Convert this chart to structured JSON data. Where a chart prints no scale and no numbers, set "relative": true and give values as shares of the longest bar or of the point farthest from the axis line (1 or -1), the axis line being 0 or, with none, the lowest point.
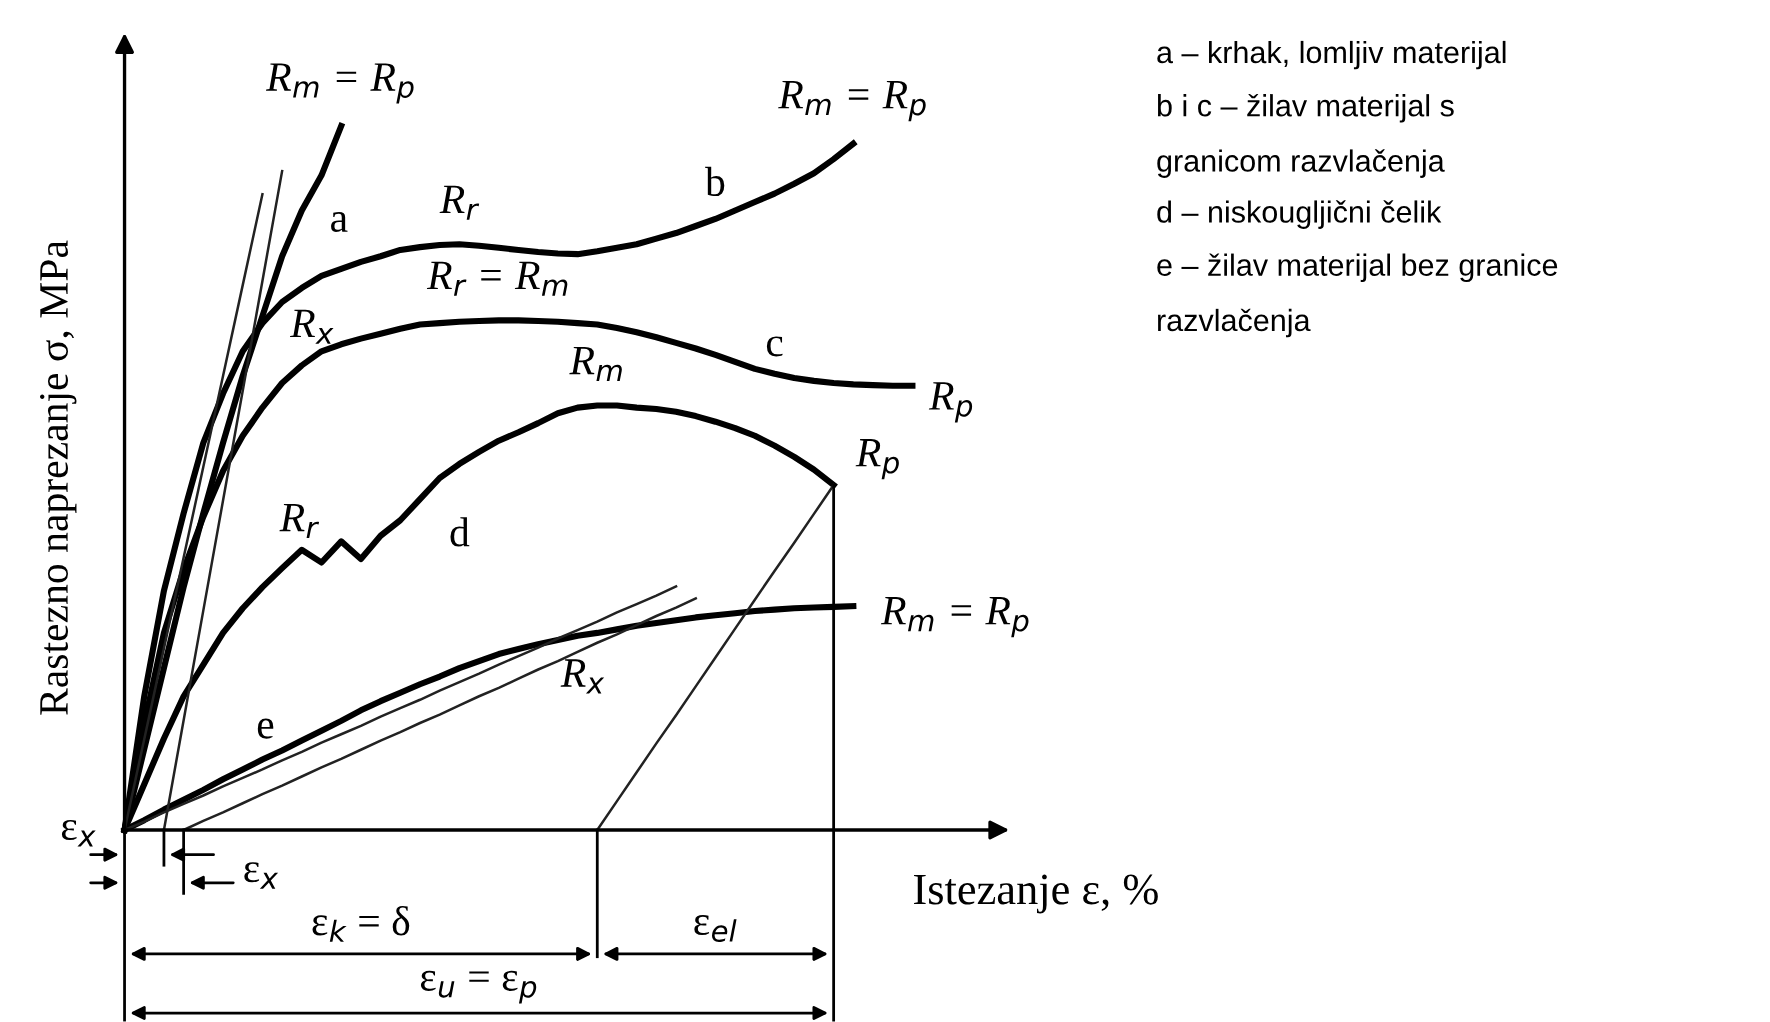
{
  "chart_data": {
    "type": "line",
    "relative": true,
    "xlabel": "Istezanje ε, %",
    "ylabel": "Rastezno naprezanje σ, MPa",
    "legend": false,
    "marker": "none",
    "line_style": "solid",
    "categories": [
      null,
      null,
      null,
      null,
      null,
      null,
      null,
      null,
      null,
      null,
      null,
      null,
      null,
      null,
      null,
      null,
      null,
      null,
      null,
      null,
      null,
      null,
      null,
      null,
      null,
      null,
      null,
      null,
      null,
      null,
      null,
      null,
      null,
      null,
      null,
      null,
      null,
      null,
      null,
      null,
      null
    ],
    "series": [
      {
        "name": "a",
        "color": "#000000",
        "values": [
          0,
          0.115,
          0.23,
          0.345,
          0.45,
          0.55,
          0.645,
          0.73,
          0.815,
          0.88,
          0.93,
          1.0,
          null,
          null,
          null,
          null,
          null,
          null,
          null,
          null,
          null,
          null,
          null,
          null,
          null,
          null,
          null,
          null,
          null,
          null,
          null,
          null,
          null,
          null,
          null,
          null,
          null,
          null,
          null,
          null,
          null
        ]
      },
      {
        "name": "b",
        "color": "#000000",
        "values": [
          0,
          0.19,
          0.34,
          0.45,
          0.55,
          0.62,
          0.68,
          0.72,
          0.75,
          0.77,
          0.787,
          0.797,
          0.807,
          0.815,
          0.824,
          0.828,
          0.831,
          0.832,
          0.83,
          0.827,
          0.824,
          0.821,
          0.819,
          0.818,
          0.822,
          0.827,
          0.832,
          0.84,
          0.848,
          0.858,
          0.868,
          0.88,
          0.892,
          0.904,
          0.918,
          0.933,
          0.953,
          0.975,
          null,
          null,
          null
        ]
      },
      {
        "name": "c",
        "color": "#000000",
        "values": [
          0,
          0.15,
          0.28,
          0.37,
          0.445,
          0.51,
          0.56,
          0.6,
          0.635,
          0.66,
          0.68,
          0.69,
          0.698,
          0.705,
          0.712,
          0.718,
          0.72,
          0.722,
          0.723,
          0.724,
          0.724,
          0.723,
          0.722,
          0.72,
          0.718,
          0.713,
          0.707,
          0.7,
          0.692,
          0.684,
          0.675,
          0.665,
          0.655,
          0.648,
          0.642,
          0.638,
          0.635,
          0.633,
          0.632,
          0.631,
          0.631
        ]
      },
      {
        "name": "d",
        "color": "#000000",
        "values": [
          0,
          0.065,
          0.13,
          0.19,
          0.235,
          0.28,
          0.315,
          0.345,
          0.372,
          0.398,
          0.38,
          0.41,
          0.385,
          0.418,
          0.44,
          0.47,
          0.5,
          0.52,
          0.537,
          0.553,
          0.565,
          0.578,
          0.592,
          0.6,
          0.603,
          0.603,
          0.6,
          0.598,
          0.594,
          0.588,
          0.58,
          0.571,
          0.56,
          0.546,
          0.53,
          0.512,
          0.49,
          null,
          null,
          null,
          null
        ]
      },
      {
        "name": "e",
        "color": "#000000",
        "values": [
          0,
          0.014,
          0.029,
          0.043,
          0.057,
          0.072,
          0.086,
          0.1,
          0.113,
          0.127,
          0.141,
          0.155,
          0.17,
          0.183,
          0.195,
          0.207,
          0.218,
          0.23,
          0.24,
          0.25,
          0.257,
          0.264,
          0.27,
          0.276,
          0.28,
          0.285,
          0.29,
          0.294,
          0.298,
          0.302,
          0.305,
          0.308,
          0.311,
          0.313,
          0.315,
          0.316,
          0.317,
          0.318,
          null,
          null,
          null
        ]
      },
      {
        "color": "#222222",
        "values": [
          0,
          0.129,
          0.258,
          0.387,
          0.516,
          0.645,
          0.774,
          0.903,
          null,
          null,
          null,
          null,
          null,
          null,
          null,
          null,
          null,
          null,
          null,
          null,
          null,
          null,
          null,
          null,
          null,
          null,
          null,
          null,
          null,
          null,
          null,
          null,
          null,
          null,
          null,
          null,
          null,
          null,
          null,
          null,
          null
        ]
      },
      {
        "color": "#222222",
        "values": [
          null,
          null,
          0,
          0.156,
          0.312,
          0.468,
          0.624,
          0.78,
          0.936,
          null,
          null,
          null,
          null,
          null,
          null,
          null,
          null,
          null,
          null,
          null,
          null,
          null,
          null,
          null,
          null,
          null,
          null,
          null,
          null,
          null,
          null,
          null,
          null,
          null,
          null,
          null,
          null,
          null,
          null,
          null,
          null
        ]
      },
      {
        "color": "#222222",
        "values": [
          0,
          0.012,
          0.025,
          0.037,
          0.049,
          0.062,
          0.074,
          0.086,
          0.099,
          0.111,
          0.124,
          0.136,
          0.148,
          0.161,
          0.173,
          0.185,
          0.198,
          0.21,
          0.222,
          0.235,
          0.247,
          0.259,
          0.272,
          0.284,
          0.296,
          0.309,
          0.321,
          0.333,
          0.346,
          null,
          null,
          null,
          null,
          null,
          null,
          null,
          null,
          null,
          null,
          null,
          null
        ]
      },
      {
        "color": "#222222",
        "values": [
          null,
          null,
          null,
          0,
          0.013,
          0.025,
          0.038,
          0.051,
          0.063,
          0.076,
          0.089,
          0.101,
          0.114,
          0.127,
          0.139,
          0.152,
          0.164,
          0.177,
          0.19,
          0.202,
          0.215,
          0.228,
          0.24,
          0.253,
          0.266,
          0.278,
          0.291,
          0.304,
          0.316,
          0.329,
          null,
          null,
          null,
          null,
          null,
          null,
          null,
          null,
          null,
          null,
          null
        ]
      },
      {
        "color": "#222222",
        "values": [
          null,
          null,
          null,
          null,
          null,
          null,
          null,
          null,
          null,
          null,
          null,
          null,
          null,
          null,
          null,
          null,
          null,
          null,
          null,
          null,
          null,
          null,
          null,
          null,
          0,
          0.041,
          0.082,
          0.123,
          0.163,
          0.204,
          0.245,
          0.286,
          0.327,
          0.368,
          0.408,
          0.449,
          0.49,
          null,
          null,
          null,
          null
        ]
      }
    ],
    "annotations": [
      "ε$_{x}$",
      "ε$_{x}$",
      "ε$_{k}$ = δ",
      "ε$_{el}$",
      "ε$_{u}$ = ε$_{p}$",
      "a – krhak, lomljiv materijal",
      "b i c – žilav materijal s\ngranicom razvlačenja",
      "d – niskougljični čelik",
      "e – žilav materijal bez granice\nrazvlačenja",
      "R$_{m}$ = R$_{p}$",
      "R$_{x}$",
      "R$_{r}$",
      "R$_{m}$ = R$_{p}$",
      "R$_{r}$ = R$_{m}$",
      "R$_{p}$",
      "R$_{m}$",
      "R$_{r}$",
      "R$_{p}$",
      "R$_{m}$ = R$_{p}$",
      "R$_{x}$"
    ]
  }
}
